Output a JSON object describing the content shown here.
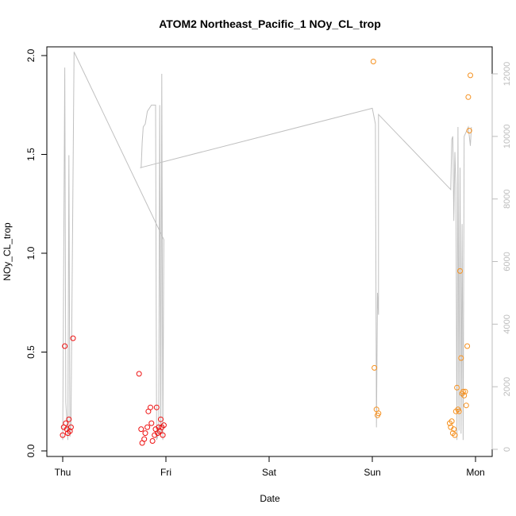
{
  "chart_data": {
    "type": "scatter",
    "title": "ATOM2 Northeast_Pacific_1 NOy_CL_trop",
    "xlabel": "Date",
    "ylabel": "NOy_CL_trop",
    "x_ticks": [
      "Thu",
      "Fri",
      "Sat",
      "Sun",
      "Mon"
    ],
    "y_ticks": [
      "0.0",
      "0.5",
      "1.0",
      "1.5",
      "2.0"
    ],
    "ylim": [
      0,
      2.0
    ],
    "y2_ticks": [
      "0",
      "2000",
      "4000",
      "6000",
      "8000",
      "10000",
      "12000"
    ],
    "y2lim": [
      0,
      12500
    ],
    "grid": false,
    "colors": {
      "series_early": "#ee1111",
      "series_late": "#f5901e",
      "altitude": "#c0c0c0",
      "axes": "#000000",
      "right_axis": "#bdbdbd"
    },
    "points": [
      {
        "x": 0.0,
        "y": 0.08,
        "series": "early"
      },
      {
        "x": 0.01,
        "y": 0.12,
        "series": "early"
      },
      {
        "x": 0.02,
        "y": 0.53,
        "series": "early"
      },
      {
        "x": 0.03,
        "y": 0.14,
        "series": "early"
      },
      {
        "x": 0.04,
        "y": 0.11,
        "series": "early"
      },
      {
        "x": 0.05,
        "y": 0.09,
        "series": "early"
      },
      {
        "x": 0.06,
        "y": 0.16,
        "series": "early"
      },
      {
        "x": 0.07,
        "y": 0.1,
        "series": "early"
      },
      {
        "x": 0.08,
        "y": 0.12,
        "series": "early"
      },
      {
        "x": 0.1,
        "y": 0.57,
        "series": "early"
      },
      {
        "x": 0.74,
        "y": 0.39,
        "series": "early"
      },
      {
        "x": 0.76,
        "y": 0.11,
        "series": "early"
      },
      {
        "x": 0.77,
        "y": 0.04,
        "series": "early"
      },
      {
        "x": 0.79,
        "y": 0.06,
        "series": "early"
      },
      {
        "x": 0.8,
        "y": 0.09,
        "series": "early"
      },
      {
        "x": 0.82,
        "y": 0.12,
        "series": "early"
      },
      {
        "x": 0.83,
        "y": 0.2,
        "series": "early"
      },
      {
        "x": 0.85,
        "y": 0.22,
        "series": "early"
      },
      {
        "x": 0.86,
        "y": 0.14,
        "series": "early"
      },
      {
        "x": 0.87,
        "y": 0.05,
        "series": "early"
      },
      {
        "x": 0.89,
        "y": 0.08,
        "series": "early"
      },
      {
        "x": 0.9,
        "y": 0.11,
        "series": "early"
      },
      {
        "x": 0.91,
        "y": 0.22,
        "series": "early"
      },
      {
        "x": 0.92,
        "y": 0.09,
        "series": "early"
      },
      {
        "x": 0.93,
        "y": 0.12,
        "series": "early"
      },
      {
        "x": 0.94,
        "y": 0.1,
        "series": "early"
      },
      {
        "x": 0.95,
        "y": 0.16,
        "series": "early"
      },
      {
        "x": 0.96,
        "y": 0.12,
        "series": "early"
      },
      {
        "x": 0.97,
        "y": 0.08,
        "series": "early"
      },
      {
        "x": 0.98,
        "y": 0.13,
        "series": "early"
      },
      {
        "x": 3.01,
        "y": 1.97,
        "series": "late"
      },
      {
        "x": 3.02,
        "y": 0.42,
        "series": "late"
      },
      {
        "x": 3.04,
        "y": 0.21,
        "series": "late"
      },
      {
        "x": 3.05,
        "y": 0.18,
        "series": "late"
      },
      {
        "x": 3.06,
        "y": 0.19,
        "series": "late"
      },
      {
        "x": 3.75,
        "y": 0.14,
        "series": "late"
      },
      {
        "x": 3.76,
        "y": 0.12,
        "series": "late"
      },
      {
        "x": 3.77,
        "y": 0.15,
        "series": "late"
      },
      {
        "x": 3.78,
        "y": 0.09,
        "series": "late"
      },
      {
        "x": 3.79,
        "y": 0.11,
        "series": "late"
      },
      {
        "x": 3.8,
        "y": 0.08,
        "series": "late"
      },
      {
        "x": 3.81,
        "y": 0.2,
        "series": "late"
      },
      {
        "x": 3.82,
        "y": 0.32,
        "series": "late"
      },
      {
        "x": 3.83,
        "y": 0.21,
        "series": "late"
      },
      {
        "x": 3.84,
        "y": 0.2,
        "series": "late"
      },
      {
        "x": 3.85,
        "y": 0.91,
        "series": "late"
      },
      {
        "x": 3.86,
        "y": 0.47,
        "series": "late"
      },
      {
        "x": 3.87,
        "y": 0.29,
        "series": "late"
      },
      {
        "x": 3.88,
        "y": 0.3,
        "series": "late"
      },
      {
        "x": 3.89,
        "y": 0.28,
        "series": "late"
      },
      {
        "x": 3.9,
        "y": 0.3,
        "series": "late"
      },
      {
        "x": 3.91,
        "y": 0.23,
        "series": "late"
      },
      {
        "x": 3.92,
        "y": 0.53,
        "series": "late"
      },
      {
        "x": 3.93,
        "y": 1.79,
        "series": "late"
      },
      {
        "x": 3.94,
        "y": 1.62,
        "series": "late"
      },
      {
        "x": 3.95,
        "y": 1.9,
        "series": "late"
      }
    ],
    "altitude_line": [
      [
        0.0,
        300
      ],
      [
        0.02,
        12200
      ],
      [
        0.03,
        1500
      ],
      [
        0.05,
        300
      ],
      [
        0.06,
        9400
      ],
      [
        0.07,
        400
      ],
      [
        0.08,
        800
      ],
      [
        0.11,
        12700
      ],
      [
        0.98,
        6700
      ],
      [
        0.97,
        300
      ],
      [
        0.96,
        12000
      ],
      [
        0.95,
        500
      ],
      [
        0.94,
        11000
      ],
      [
        0.93,
        600
      ],
      [
        0.92,
        400
      ],
      [
        0.91,
        300
      ],
      [
        0.9,
        11000
      ],
      [
        0.89,
        11000
      ],
      [
        0.86,
        11000
      ],
      [
        0.82,
        10800
      ],
      [
        0.8,
        10400
      ],
      [
        0.78,
        10300
      ],
      [
        0.77,
        9800
      ],
      [
        0.76,
        9000
      ],
      [
        0.75,
        9000
      ],
      [
        3.0,
        10900
      ],
      [
        3.03,
        10400
      ],
      [
        3.04,
        700
      ],
      [
        3.05,
        5000
      ],
      [
        3.06,
        4300
      ],
      [
        3.06,
        10700
      ],
      [
        3.76,
        8300
      ],
      [
        3.77,
        9900
      ],
      [
        3.78,
        10000
      ],
      [
        3.79,
        7300
      ],
      [
        3.8,
        9500
      ],
      [
        3.81,
        8400
      ],
      [
        3.82,
        300
      ],
      [
        3.83,
        10300
      ],
      [
        3.84,
        600
      ],
      [
        3.85,
        9000
      ],
      [
        3.86,
        500
      ],
      [
        3.87,
        7200
      ],
      [
        3.88,
        300
      ],
      [
        3.89,
        10000
      ],
      [
        3.93,
        10300
      ],
      [
        3.95,
        9700
      ],
      [
        3.96,
        10300
      ]
    ]
  }
}
